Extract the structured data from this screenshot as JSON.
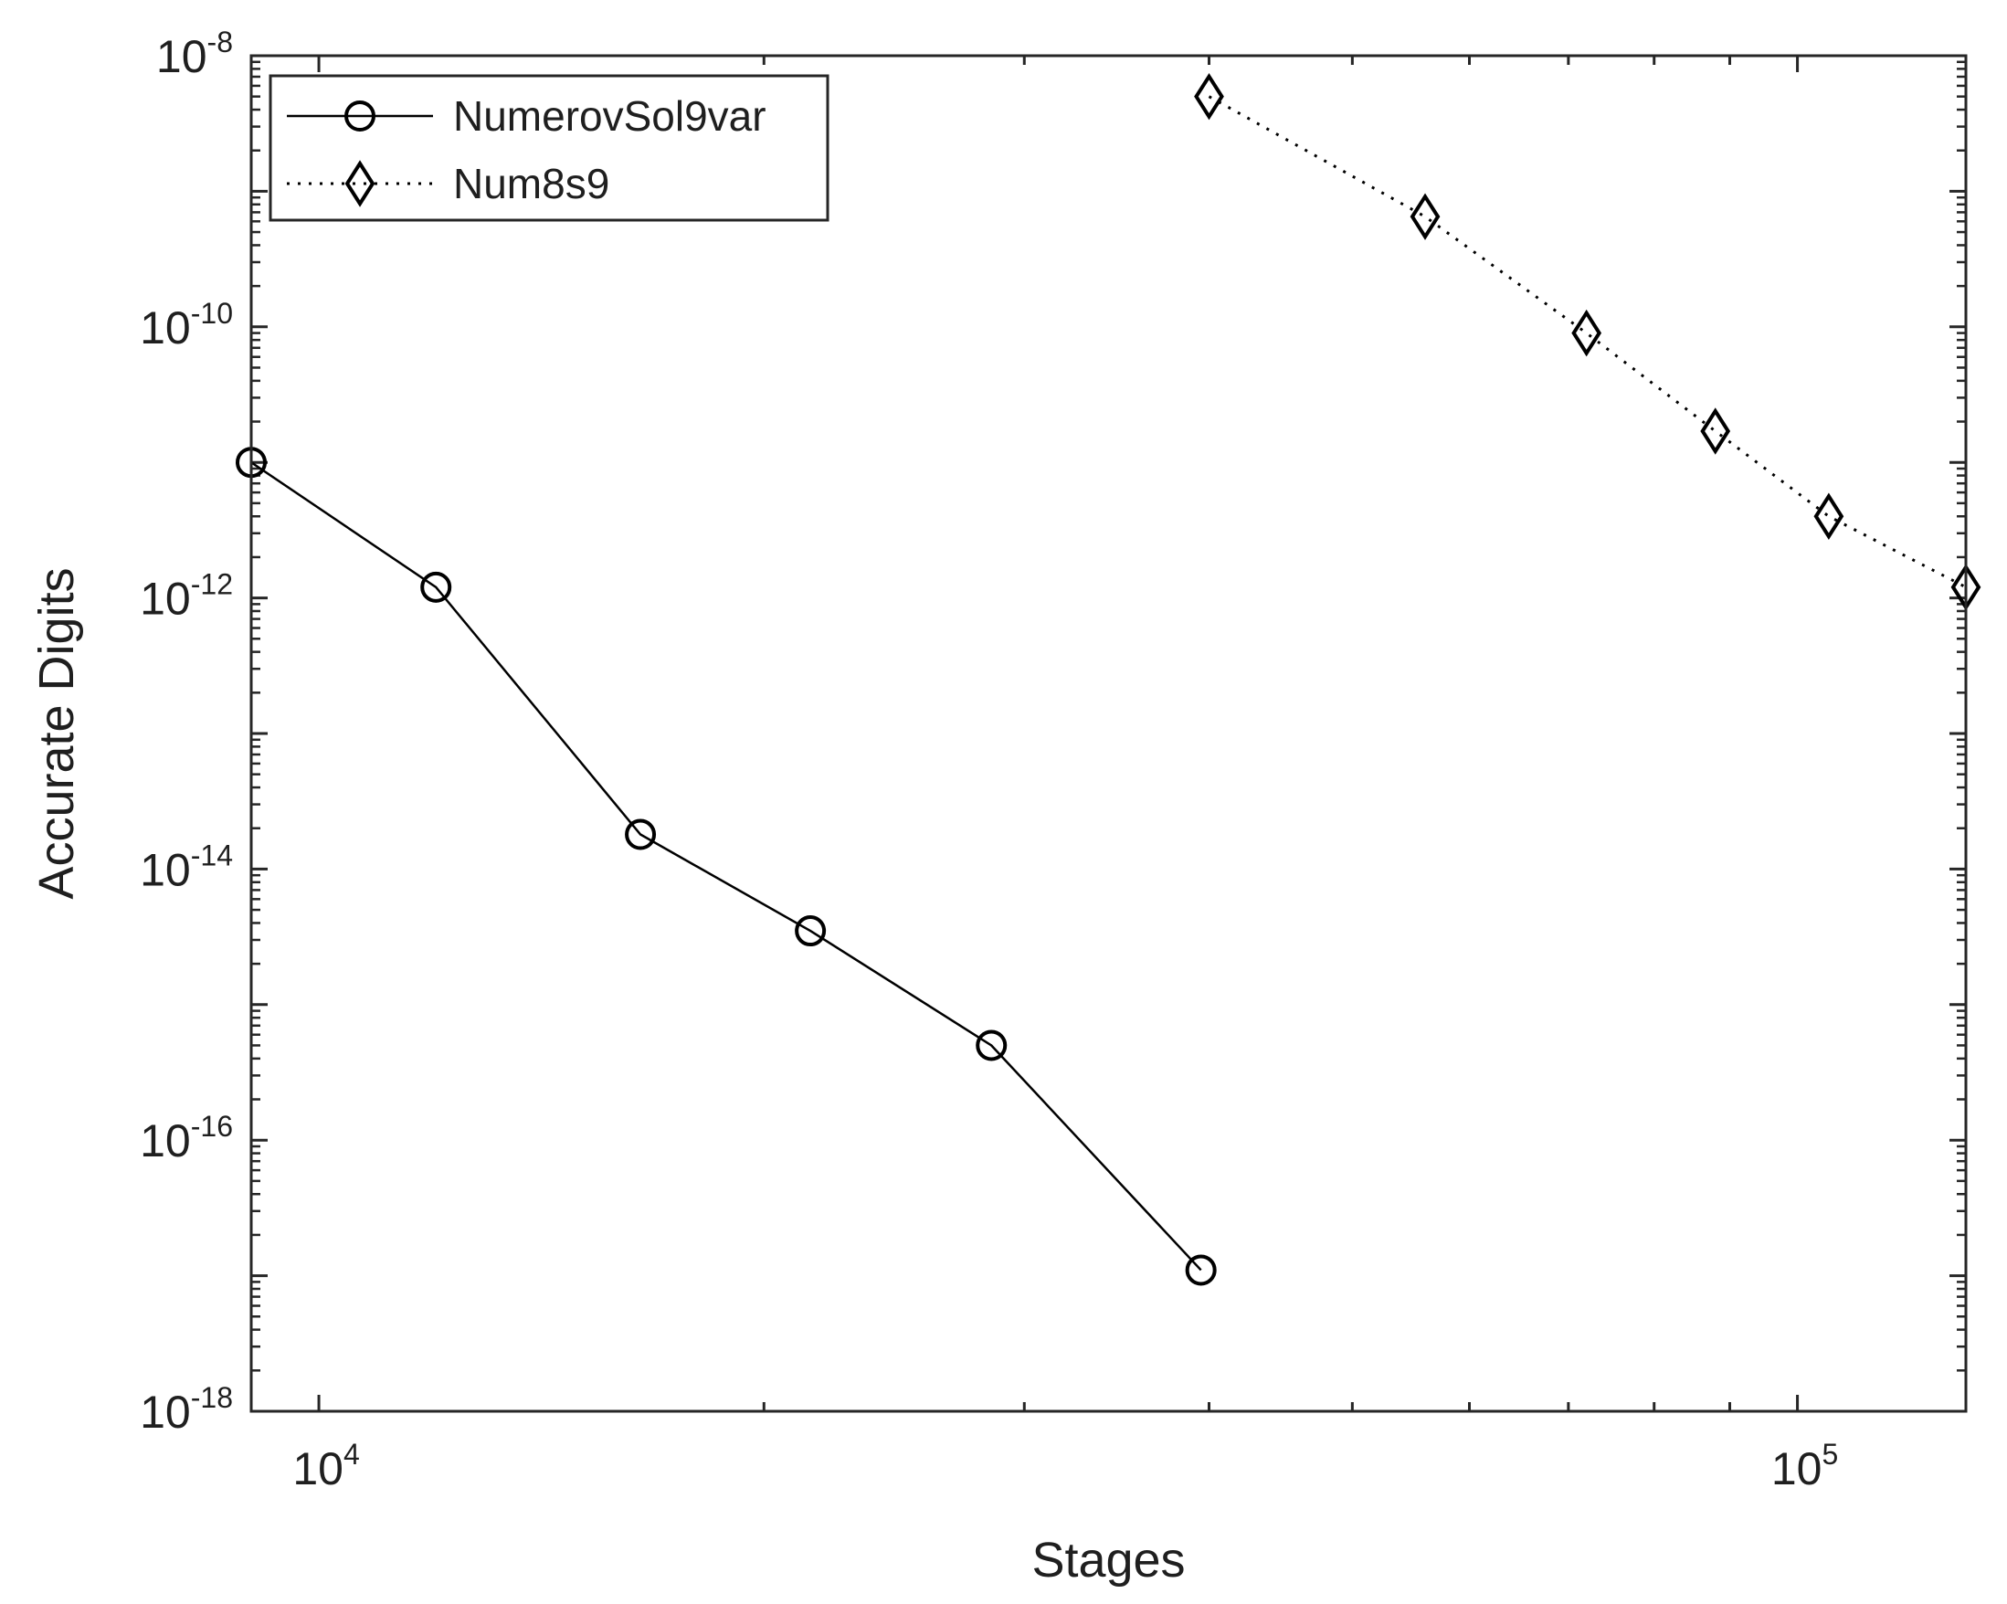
{
  "chart_data": {
    "type": "line",
    "title": "",
    "xlabel": "Stages",
    "ylabel": "Accurate Digits",
    "x_scale": "log",
    "y_scale": "log",
    "xlim": [
      9000,
      130000
    ],
    "ylim": [
      1e-18,
      1e-08
    ],
    "grid": false,
    "legend_position": "top-left",
    "x_ticks": [
      {
        "value": 10000,
        "base": "10",
        "exp": "4"
      },
      {
        "value": 100000,
        "base": "10",
        "exp": "5"
      }
    ],
    "y_ticks": [
      {
        "value": 1e-08,
        "base": "10",
        "exp": "-8"
      },
      {
        "value": 1e-10,
        "base": "10",
        "exp": "-10"
      },
      {
        "value": 1e-12,
        "base": "10",
        "exp": "-12"
      },
      {
        "value": 1e-14,
        "base": "10",
        "exp": "-14"
      },
      {
        "value": 1e-16,
        "base": "10",
        "exp": "-16"
      },
      {
        "value": 1e-18,
        "base": "10",
        "exp": "-18"
      }
    ],
    "series": [
      {
        "name": "NumerovSol9var",
        "line_style": "solid",
        "marker": "circle",
        "color": "#000000",
        "x": [
          9000,
          12000,
          16500,
          21500,
          28500,
          39500
        ],
        "y": [
          1e-11,
          1.2e-12,
          1.8e-14,
          3.5e-15,
          5e-16,
          1.1e-17
        ]
      },
      {
        "name": "Num8s9",
        "line_style": "dotted",
        "marker": "diamond",
        "color": "#000000",
        "x": [
          40000,
          56000,
          72000,
          88000,
          105000,
          130000
        ],
        "y": [
          5e-09,
          6.5e-10,
          9e-11,
          1.7e-11,
          4e-12,
          1.2e-12
        ]
      }
    ]
  }
}
